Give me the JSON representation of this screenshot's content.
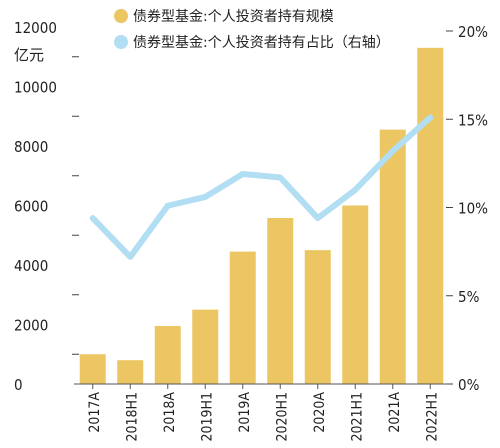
{
  "chart_data": {
    "type": "bar",
    "categories": [
      "2017A",
      "2018H1",
      "2018A",
      "2019H1",
      "2019A",
      "2020H1",
      "2020A",
      "2021H1",
      "2021A",
      "2022H1"
    ],
    "series": [
      {
        "name": "债券型基金:个人投资者持有规模",
        "type": "bar",
        "axis": "left",
        "color": "#ecc662",
        "values": [
          1000,
          800,
          1950,
          2500,
          4450,
          5580,
          4500,
          6000,
          8550,
          11300
        ]
      },
      {
        "name": "债券型基金:个人投资者持有占比（右轴）",
        "type": "line",
        "axis": "right",
        "color": "#b1def2",
        "values": [
          9.4,
          7.2,
          10.1,
          10.6,
          11.9,
          11.7,
          9.4,
          11.0,
          13.2,
          15.1
        ]
      }
    ],
    "y_left": {
      "unit": "亿元",
      "ylim": [
        0,
        12000
      ],
      "ticks": [
        "0",
        "2000",
        "4000",
        "6000",
        "8000",
        "10000",
        "12000"
      ]
    },
    "y_right": {
      "ylim": [
        0,
        20
      ],
      "ticks": [
        "0%",
        "5%",
        "10%",
        "15%",
        "20%"
      ]
    },
    "legend_position": "top",
    "grid": false
  }
}
